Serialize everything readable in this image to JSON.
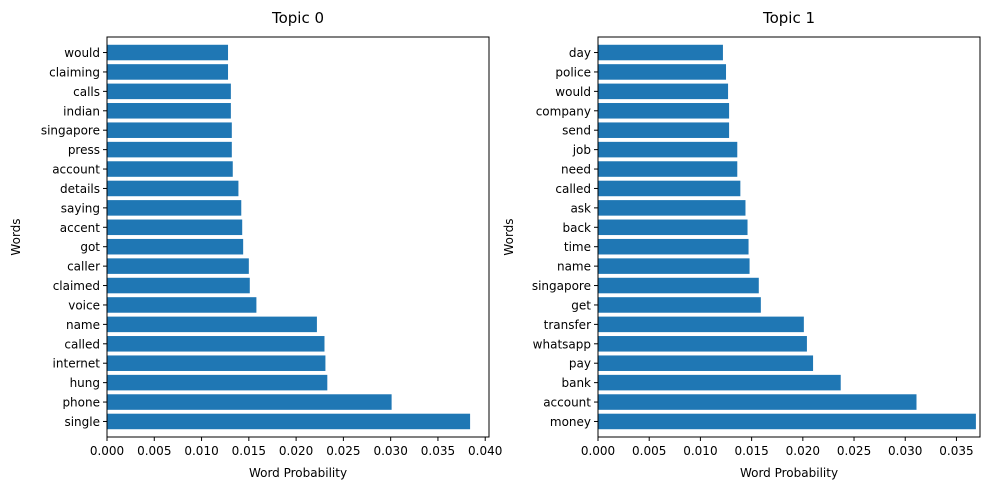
{
  "figure": {
    "bar_color": "#1f77b4"
  },
  "chart_data": [
    {
      "type": "bar",
      "orientation": "horizontal",
      "title": "Topic 0",
      "xlabel": "Word Probability",
      "ylabel": "Words",
      "xlim": [
        0,
        0.0404
      ],
      "xticks": [
        "0.000",
        "0.005",
        "0.010",
        "0.015",
        "0.020",
        "0.025",
        "0.030",
        "0.035",
        "0.040"
      ],
      "xtick_values": [
        0,
        0.005,
        0.01,
        0.015,
        0.02,
        0.025,
        0.03,
        0.035,
        0.04
      ],
      "grid": false,
      "categories": [
        "single",
        "phone",
        "hung",
        "internet",
        "called",
        "name",
        "voice",
        "claimed",
        "caller",
        "got",
        "accent",
        "saying",
        "details",
        "account",
        "press",
        "singapore",
        "indian",
        "calls",
        "claiming",
        "would"
      ],
      "values": [
        0.0384,
        0.0301,
        0.0233,
        0.0231,
        0.023,
        0.0222,
        0.0158,
        0.0151,
        0.015,
        0.0144,
        0.0143,
        0.0142,
        0.0139,
        0.0133,
        0.0132,
        0.0132,
        0.0131,
        0.0131,
        0.0128,
        0.0128
      ]
    },
    {
      "type": "bar",
      "orientation": "horizontal",
      "title": "Topic 1",
      "xlabel": "Word Probability",
      "ylabel": "Words",
      "xlim": [
        0,
        0.0373
      ],
      "xticks": [
        "0.000",
        "0.005",
        "0.010",
        "0.015",
        "0.020",
        "0.025",
        "0.030",
        "0.035"
      ],
      "xtick_values": [
        0,
        0.005,
        0.01,
        0.015,
        0.02,
        0.025,
        0.03,
        0.035
      ],
      "grid": false,
      "categories": [
        "money",
        "account",
        "bank",
        "pay",
        "whatsapp",
        "transfer",
        "get",
        "singapore",
        "name",
        "time",
        "back",
        "ask",
        "called",
        "need",
        "job",
        "send",
        "company",
        "would",
        "police",
        "day"
      ],
      "values": [
        0.0369,
        0.0311,
        0.0237,
        0.021,
        0.0204,
        0.0201,
        0.0159,
        0.0157,
        0.0148,
        0.0147,
        0.0146,
        0.0144,
        0.0139,
        0.0136,
        0.0136,
        0.0128,
        0.0128,
        0.0127,
        0.0125,
        0.0122
      ]
    }
  ]
}
